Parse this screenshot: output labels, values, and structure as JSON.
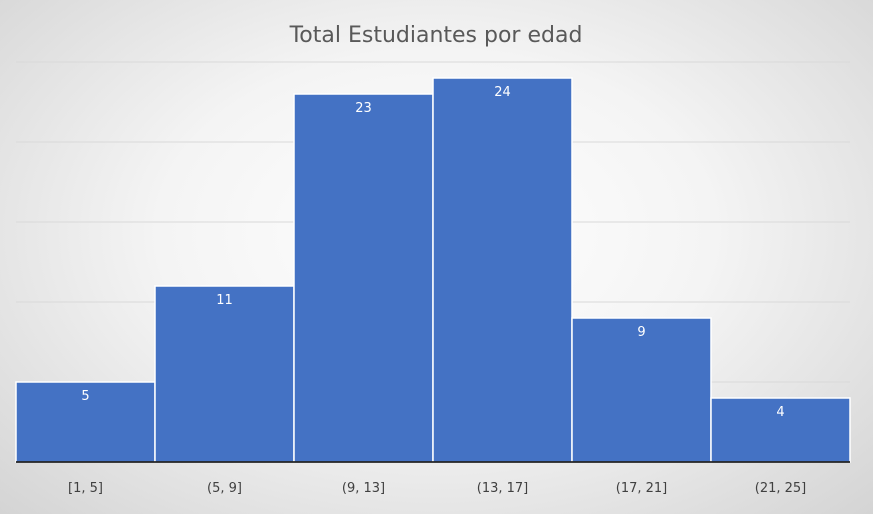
{
  "chart_data": {
    "type": "bar",
    "title": "Total Estudiantes por edad",
    "categories": [
      "[1, 5]",
      "(5, 9]",
      "(9, 13]",
      "(13, 17]",
      "(17, 21]",
      "(21, 25]"
    ],
    "values": [
      5,
      11,
      23,
      24,
      9,
      4
    ],
    "ylim": [
      0,
      25
    ],
    "grid": true,
    "legend": "none",
    "colors": {
      "bar": "#4472C4",
      "grid": "#d9d9d9",
      "axis": "#000000",
      "bar_edge": "#ffffff"
    }
  }
}
